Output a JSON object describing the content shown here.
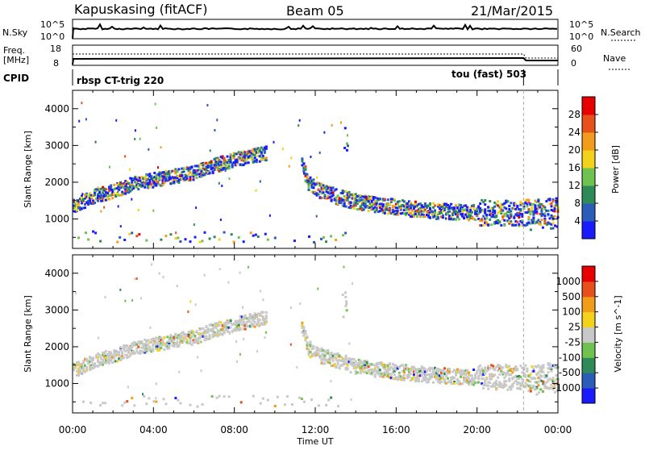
{
  "header": {
    "station": "Kapuskasing (fitACF)",
    "beam": "Beam 05",
    "date": "21/Mar/2015"
  },
  "top_panels": {
    "nsky_label": "N.Sky",
    "nsky_ticks": [
      "10^5",
      "10^0"
    ],
    "nsearch_label": "N.Search",
    "nsearch_ticks": [
      "10^5",
      "10^0"
    ],
    "freq_label_1": "Freq.",
    "freq_label_2": "[MHz]",
    "freq_ticks": [
      "18",
      "8"
    ],
    "nave_label": "Nave",
    "nave_ticks": [
      "60",
      "0"
    ],
    "cpid_label": "CPID",
    "cpid_segments": [
      {
        "label": "rbsp CT-trig 220",
        "start_hour": 0.0,
        "end_hour": 22.3
      },
      {
        "label": "tou (fast) 503",
        "start_hour": 22.3,
        "end_hour": 24.0
      }
    ]
  },
  "x_axis": {
    "label": "Time UT",
    "ticks": [
      "00:00",
      "04:00",
      "08:00",
      "12:00",
      "16:00",
      "20:00",
      "00:00"
    ]
  },
  "chart_data": [
    {
      "type": "heatmap",
      "panel": "power",
      "ylabel": "Slant Range [km]",
      "yticks": [
        "1000",
        "2000",
        "3000",
        "4000"
      ],
      "ylim": [
        200,
        4500
      ],
      "xlim_hours": [
        0,
        24
      ],
      "colorbar_label": "Power [dB]",
      "colorbar_ticks": [
        "4",
        "8",
        "12",
        "16",
        "20",
        "24",
        "28"
      ],
      "colorbar_colors": [
        "#1a1aff",
        "#2a5cb8",
        "#2e8b57",
        "#6fc24f",
        "#f2d21b",
        "#f29c1b",
        "#e8501b",
        "#e60000"
      ],
      "echo_bands": [
        {
          "hours": [
            0.0,
            0.5,
            1.0,
            2.0,
            3.0,
            4.0,
            5.0,
            6.0,
            7.0,
            8.0,
            9.0,
            9.6
          ],
          "range_km": [
            1350,
            1450,
            1600,
            1750,
            1950,
            2050,
            2150,
            2250,
            2450,
            2600,
            2720,
            2780
          ]
        },
        {
          "hours": [
            11.3,
            11.6,
            12.0,
            13.0,
            14.0,
            16.0,
            18.0,
            20.0,
            22.0,
            24.0
          ],
          "range_km": [
            2500,
            1950,
            1800,
            1600,
            1450,
            1300,
            1200,
            1150,
            1150,
            1200
          ]
        }
      ]
    },
    {
      "type": "heatmap",
      "panel": "velocity",
      "ylabel": "Slant Range [km]",
      "yticks": [
        "1000",
        "2000",
        "3000",
        "4000"
      ],
      "ylim": [
        200,
        4500
      ],
      "xlim_hours": [
        0,
        24
      ],
      "colorbar_label": "Velocity [m s^-1]",
      "colorbar_ticks": [
        "1000",
        "500",
        "100",
        "25",
        "-25",
        "-100",
        "-500",
        "-1000"
      ],
      "colorbar_colors": [
        "#1a1aff",
        "#2a5cb8",
        "#2e8b57",
        "#6fc24f",
        "#c8c8c8",
        "#f2d21b",
        "#f29c1b",
        "#e8501b",
        "#e60000"
      ],
      "echo_bands": [
        {
          "hours": [
            0.0,
            0.5,
            1.0,
            2.0,
            3.0,
            4.0,
            5.0,
            6.0,
            7.0,
            8.0,
            9.0,
            9.6
          ],
          "range_km": [
            1350,
            1450,
            1600,
            1750,
            1950,
            2050,
            2150,
            2250,
            2450,
            2600,
            2720,
            2780
          ]
        },
        {
          "hours": [
            11.3,
            11.6,
            12.0,
            13.0,
            14.0,
            16.0,
            18.0,
            20.0,
            22.0,
            24.0
          ],
          "range_km": [
            2500,
            1950,
            1800,
            1600,
            1450,
            1300,
            1200,
            1150,
            1150,
            1200
          ]
        }
      ]
    }
  ]
}
